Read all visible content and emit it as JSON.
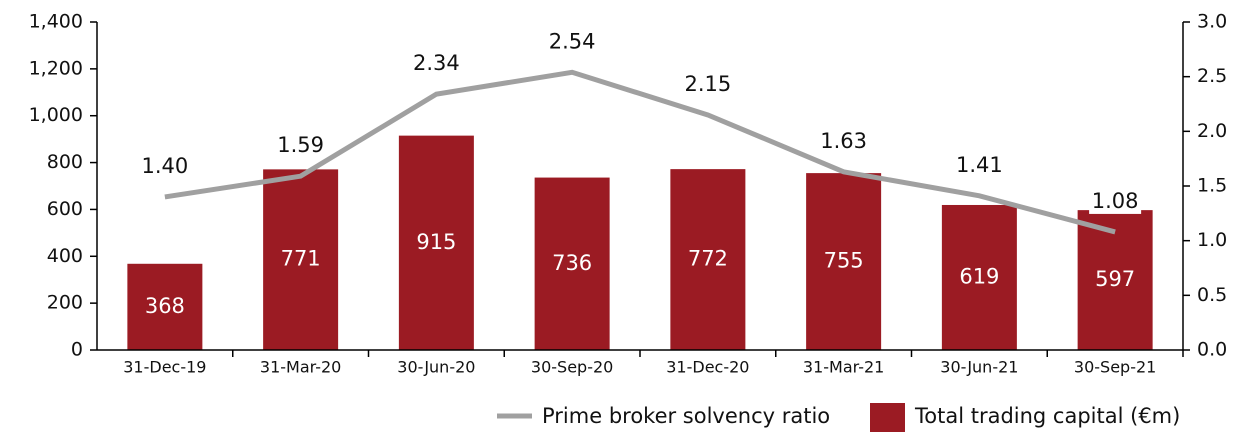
{
  "chart_data": {
    "type": "bar+line",
    "categories": [
      "31-Dec-19",
      "31-Mar-20",
      "30-Jun-20",
      "30-Sep-20",
      "31-Dec-20",
      "31-Mar-21",
      "30-Jun-21",
      "30-Sep-21"
    ],
    "series": [
      {
        "name": "Prime broker solvency ratio",
        "type": "line",
        "axis": "y2",
        "color": "#a0a0a0",
        "values": [
          1.4,
          1.59,
          2.34,
          2.54,
          2.15,
          1.63,
          1.41,
          1.08
        ],
        "value_labels": [
          "1.40",
          "1.59",
          "2.34",
          "2.54",
          "2.15",
          "1.63",
          "1.41",
          "1.08"
        ]
      },
      {
        "name": "Total trading capital (€m)",
        "type": "bar",
        "axis": "y",
        "color": "#9b1b23",
        "values": [
          368,
          771,
          915,
          736,
          772,
          755,
          619,
          597
        ]
      }
    ],
    "ylim": [
      0,
      1400
    ],
    "yticks": [
      0,
      200,
      400,
      600,
      800,
      {
        "value": 1000,
        "label": "1,000"
      },
      {
        "value": 1200,
        "label": "1,200"
      },
      {
        "value": 1400,
        "label": "1,400"
      }
    ],
    "y2lim": [
      0,
      3
    ],
    "y2ticks": [
      {
        "value": 0,
        "label": "0.0"
      },
      0.5,
      {
        "value": 1,
        "label": "1.0"
      },
      1.5,
      {
        "value": 2,
        "label": "2.0"
      },
      2.5,
      {
        "value": 3,
        "label": "3.0"
      }
    ],
    "legend": "bottom"
  }
}
